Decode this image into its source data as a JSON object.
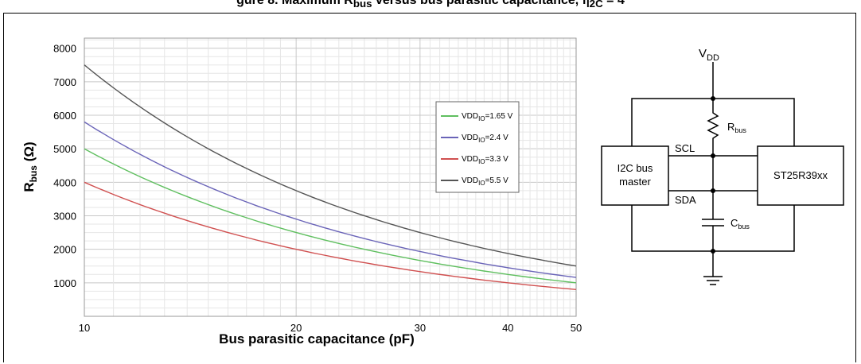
{
  "caption": {
    "prefix": "gure 8. Maximum R",
    "sub": "bus",
    "suffix": " versus bus parasitic capacitance, f",
    "sub2": "I2C",
    "tail": " = 4"
  },
  "chart_data": {
    "type": "line",
    "xscale": "log",
    "xlim": [
      10,
      50
    ],
    "ylim": [
      0,
      8300
    ],
    "x_ticks": [
      10,
      20,
      30,
      40,
      50
    ],
    "y_ticks": [
      1000,
      2000,
      3000,
      4000,
      5000,
      6000,
      7000,
      8000
    ],
    "xlabel": "Bus parasitic capacitance (pF)",
    "ylabel_main": "R",
    "ylabel_sub": "bus",
    "ylabel_unit": " (Ω)",
    "grid": true,
    "legend_position": "right",
    "series": [
      {
        "name_main": "VDD",
        "name_sub": "IO",
        "name_tail": "=1.65 V",
        "color": "#5fbf5f",
        "x": [
          10,
          50
        ],
        "y": [
          5000,
          1000
        ]
      },
      {
        "name_main": "VDD",
        "name_sub": "IO",
        "name_tail": "=2.4 V",
        "color": "#6a64b8",
        "x": [
          10,
          50
        ],
        "y": [
          5800,
          1160
        ]
      },
      {
        "name_main": "VDD",
        "name_sub": "IO",
        "name_tail": "=3.3 V",
        "color": "#d05050",
        "x": [
          10,
          50
        ],
        "y": [
          4000,
          800
        ]
      },
      {
        "name_main": "VDD",
        "name_sub": "IO",
        "name_tail": "=5.5 V",
        "color": "#555555",
        "x": [
          10,
          50
        ],
        "y": [
          7500,
          1500
        ]
      }
    ]
  },
  "diagram": {
    "vdd_main": "V",
    "vdd_sub": "DD",
    "rbus_main": "R",
    "rbus_sub": "bus",
    "cbus_main": "C",
    "cbus_sub": "bus",
    "scl": "SCL",
    "sda": "SDA",
    "master_line1": "I2C bus",
    "master_line2": "master",
    "device": "ST25R39xx"
  }
}
